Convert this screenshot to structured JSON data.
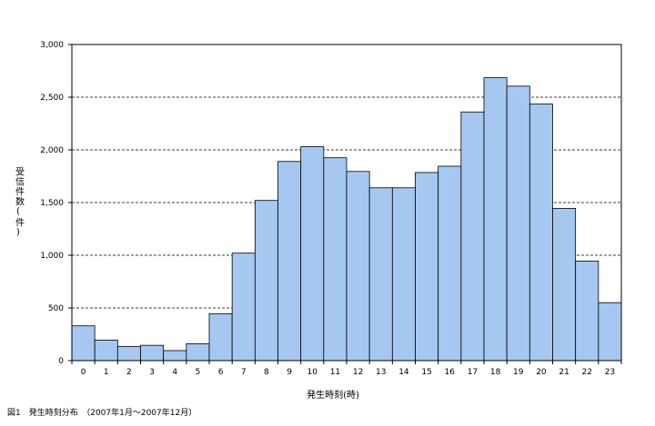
{
  "chart_data": {
    "type": "bar",
    "xlabel": "発生時刻(時)",
    "ylabel": "受信件数(件)",
    "caption": "図1　発生時刻分布　（2007年1月～2007年12月）",
    "categories": [
      "0",
      "1",
      "2",
      "3",
      "4",
      "5",
      "6",
      "7",
      "8",
      "9",
      "10",
      "11",
      "12",
      "13",
      "14",
      "15",
      "16",
      "17",
      "18",
      "19",
      "20",
      "21",
      "22",
      "23"
    ],
    "values": [
      330,
      195,
      135,
      145,
      95,
      160,
      445,
      1020,
      1520,
      1890,
      2030,
      1925,
      1795,
      1640,
      1640,
      1785,
      1845,
      2360,
      2685,
      2605,
      2435,
      1445,
      945,
      550
    ],
    "ylim": [
      0,
      3000
    ],
    "yticks": [
      0,
      500,
      1000,
      1500,
      2000,
      2500,
      3000
    ],
    "ytick_labels": [
      "0",
      "500",
      "1,000",
      "1,500",
      "2,000",
      "2,500",
      "3,000"
    ],
    "grid": true,
    "bar_color": "#a6c8f0",
    "bar_edge_color": "#000000",
    "grid_color": "#000000"
  }
}
